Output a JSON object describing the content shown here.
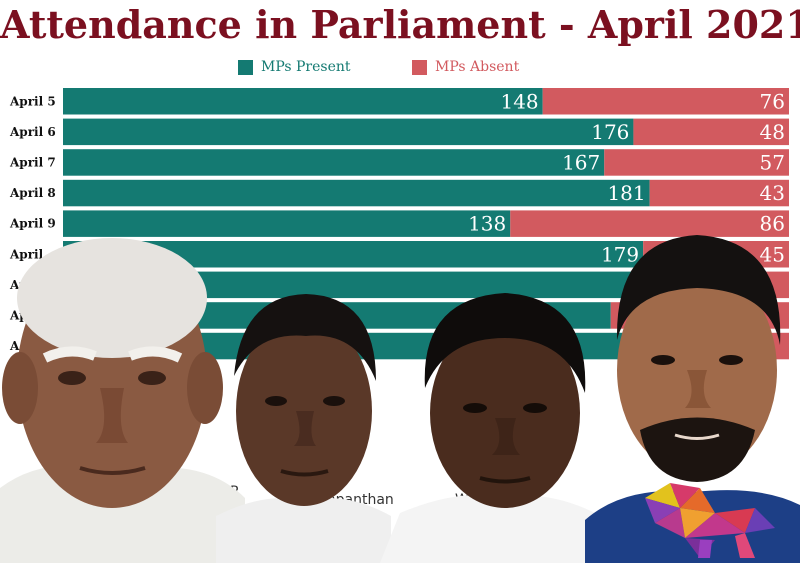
{
  "title": "Attendance in Parliament - April 2021",
  "legend": {
    "present_label": "MPs Present",
    "absent_label": "MPs Absent"
  },
  "colors": {
    "present": "#147a72",
    "absent": "#d25a5f",
    "title": "#7b1020"
  },
  "obscured_text": [
    "R",
    "mpanthan",
    "Wima"
  ],
  "chart_data": {
    "type": "bar",
    "orientation": "horizontal",
    "stacked": true,
    "title": "Attendance in Parliament - April 2021",
    "categories": [
      "April 5",
      "April 6",
      "April 7",
      "April 8",
      "April 9",
      "April",
      "Ap",
      "Ap",
      "A"
    ],
    "series": [
      {
        "name": "MPs Present",
        "values": [
          148,
          176,
          167,
          181,
          138,
          179,
          179,
          169,
          182
        ]
      },
      {
        "name": "MPs Absent",
        "values": [
          76,
          48,
          57,
          43,
          86,
          45,
          45,
          55,
          42
        ]
      }
    ],
    "visible_value_labels": 6,
    "xlim": [
      0,
      224
    ],
    "grid": false,
    "legend_position": "top-center"
  }
}
